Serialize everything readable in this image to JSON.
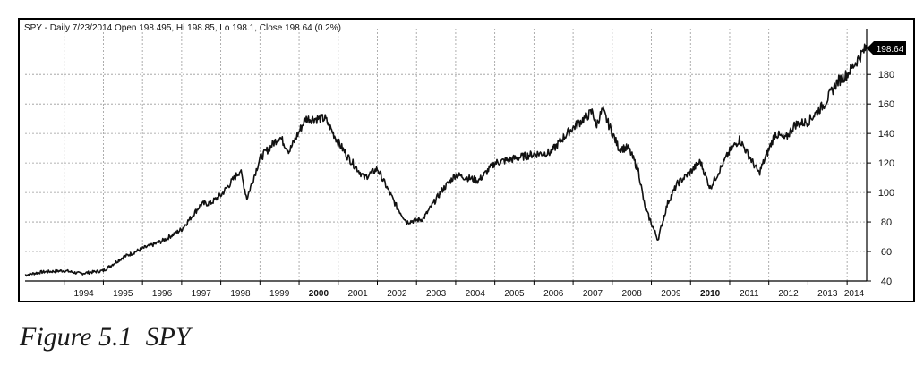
{
  "header": {
    "info_line": "SPY - Daily 7/23/2014 Open 198.495, Hi 198.85, Lo 198.1, Close 198.64 (0.2%)",
    "last_price_label": "198.64"
  },
  "caption": "Figure 5.1  SPY",
  "colors": {
    "line": "#111111",
    "grid": "#9a9a9a",
    "frame": "#000000",
    "badge_bg": "#000000",
    "badge_text": "#ffffff"
  },
  "chart_data": {
    "type": "line",
    "title": "SPY - Daily 7/23/2014 Open 198.495, Hi 198.85, Lo 198.1, Close 198.64 (0.2%)",
    "xlabel": "",
    "ylabel": "",
    "x_tick_labels": [
      "1994",
      "1995",
      "1996",
      "1997",
      "1998",
      "1999",
      "2000",
      "2001",
      "2002",
      "2003",
      "2004",
      "2005",
      "2006",
      "2007",
      "2008",
      "2009",
      "2010",
      "2011",
      "2012",
      "2013",
      "2014"
    ],
    "y_ticks": [
      40,
      60,
      80,
      100,
      120,
      140,
      160,
      180
    ],
    "ylim": [
      40,
      205
    ],
    "xlim": [
      "1993-01",
      "2014-07"
    ],
    "grid": true,
    "y_axis_position": "right",
    "series": [
      {
        "x": [
          "1993-01",
          "1993-06",
          "1994-01",
          "1994-06",
          "1995-01",
          "1995-07",
          "1996-01",
          "1996-07",
          "1997-01",
          "1997-07",
          "1997-10",
          "1998-01",
          "1998-07",
          "1998-09",
          "1999-01",
          "1999-07",
          "1999-10",
          "2000-03",
          "2000-09",
          "2001-01",
          "2001-04",
          "2001-09",
          "2002-01",
          "2002-07",
          "2002-10",
          "2003-03",
          "2003-09",
          "2004-01",
          "2004-08",
          "2005-01",
          "2005-07",
          "2006-01",
          "2006-06",
          "2006-12",
          "2007-07",
          "2007-08",
          "2007-10",
          "2008-03",
          "2008-06",
          "2008-09",
          "2008-11",
          "2009-03",
          "2009-06",
          "2009-09",
          "2010-01",
          "2010-04",
          "2010-07",
          "2011-01",
          "2011-04",
          "2011-10",
          "2012-03",
          "2012-06",
          "2012-09",
          "2013-01",
          "2013-06",
          "2013-10",
          "2014-01",
          "2014-07"
        ],
        "y": [
          44,
          46,
          47,
          45,
          47,
          56,
          62,
          67,
          75,
          92,
          93,
          98,
          115,
          96,
          123,
          138,
          128,
          150,
          150,
          134,
          124,
          110,
          116,
          90,
          80,
          82,
          102,
          112,
          108,
          120,
          123,
          126,
          127,
          142,
          155,
          145,
          156,
          130,
          130,
          115,
          90,
          68,
          93,
          106,
          114,
          121,
          103,
          128,
          136,
          113,
          140,
          136,
          146,
          148,
          160,
          175,
          180,
          198.64
        ]
      }
    ]
  }
}
